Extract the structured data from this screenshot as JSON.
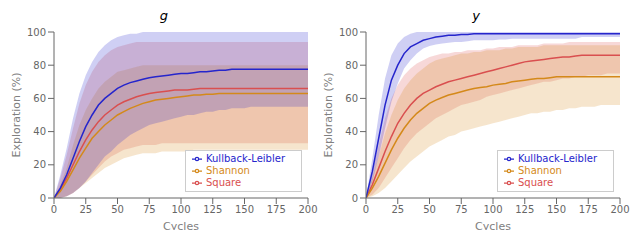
{
  "chart_data": [
    {
      "type": "line",
      "title": "g",
      "xlabel": "Cycles",
      "ylabel": "Exploration (%)",
      "x": [
        0,
        5,
        10,
        15,
        20,
        25,
        30,
        35,
        40,
        45,
        50,
        55,
        60,
        65,
        70,
        75,
        80,
        85,
        90,
        95,
        100,
        105,
        110,
        115,
        120,
        125,
        130,
        135,
        140,
        145,
        150,
        155,
        160,
        165,
        170,
        175,
        180,
        185,
        190,
        195,
        200
      ],
      "xlim": [
        0,
        200
      ],
      "xticks": [
        0,
        25,
        50,
        75,
        100,
        125,
        150,
        175,
        200
      ],
      "ylim": [
        0,
        100
      ],
      "yticks": [
        0,
        20,
        40,
        60,
        80,
        100
      ],
      "grid": false,
      "legend": "lower right",
      "series": [
        {
          "name": "Square",
          "color": "#d94f4f",
          "values": [
            0,
            5,
            12,
            20,
            28,
            35,
            41,
            46,
            50,
            53,
            56,
            58,
            59.5,
            61,
            62,
            63,
            63.5,
            64,
            64.5,
            65,
            65,
            65,
            65.5,
            66,
            66,
            66,
            66,
            66,
            66,
            66,
            66,
            66,
            66,
            66,
            66,
            66,
            66,
            66,
            66,
            66,
            66
          ],
          "low": [
            0,
            0,
            1,
            3,
            6,
            10,
            14,
            18,
            22,
            25,
            27,
            29,
            30,
            31,
            32,
            32,
            32,
            33,
            33,
            33,
            33,
            33,
            33,
            33,
            33,
            33,
            33,
            33,
            33,
            33,
            33,
            33,
            33,
            33,
            33,
            33,
            33,
            33,
            33,
            33,
            33
          ],
          "high": [
            0,
            12,
            26,
            42,
            57,
            68,
            76,
            82,
            86,
            89,
            91,
            92,
            93,
            94,
            94,
            94,
            94,
            94,
            94,
            94,
            94,
            94,
            94,
            94,
            94,
            94,
            94,
            94,
            94,
            94,
            94,
            94,
            94,
            94,
            94,
            94,
            94,
            94,
            94,
            94,
            94
          ]
        },
        {
          "name": "Shannon",
          "color": "#d4891a",
          "values": [
            0,
            4,
            10,
            17,
            24,
            30,
            36,
            40,
            44,
            47,
            50,
            52,
            54,
            55.5,
            57,
            58,
            59,
            59.5,
            60,
            60.5,
            61,
            61.5,
            62,
            62,
            62.5,
            62.5,
            63,
            63,
            63,
            63,
            63,
            63,
            63,
            63,
            63,
            63,
            63,
            63,
            63,
            63,
            63
          ],
          "low": [
            0,
            0,
            1,
            3,
            6,
            9,
            12,
            15,
            18,
            20,
            22,
            24,
            25,
            26,
            27,
            27,
            27,
            28,
            28,
            28,
            28,
            28,
            29,
            29,
            29,
            29,
            29,
            29,
            29,
            29,
            29,
            29,
            29,
            29,
            29,
            29,
            29,
            29,
            29,
            29,
            29
          ],
          "high": [
            0,
            8,
            18,
            32,
            44,
            53,
            60,
            66,
            70,
            73,
            76,
            77,
            78,
            79,
            80,
            80,
            80,
            80,
            80,
            80,
            80,
            80,
            80,
            80,
            80,
            80,
            80,
            80,
            80,
            80,
            80,
            80,
            80,
            80,
            80,
            80,
            80,
            80,
            80,
            80,
            80
          ]
        },
        {
          "name": "Kullback-Leibler",
          "color": "#2525cc",
          "values": [
            0,
            6,
            14,
            24,
            34,
            43,
            50,
            56,
            60,
            63,
            66,
            68,
            69.5,
            70.5,
            71.5,
            72.5,
            73,
            73.5,
            74,
            74.5,
            75,
            75,
            75.5,
            76,
            76,
            76.5,
            77,
            77,
            77.5,
            77.5,
            77.5,
            77.5,
            77.5,
            77.5,
            77.5,
            77.5,
            77.5,
            77.5,
            77.5,
            77.5,
            77.5
          ],
          "low": [
            0,
            0,
            1,
            3,
            6,
            10,
            15,
            20,
            25,
            28,
            32,
            35,
            38,
            40,
            42,
            44,
            45,
            46,
            47,
            48,
            49,
            50,
            50,
            51,
            52,
            52,
            53,
            53,
            54,
            54,
            54,
            55,
            55,
            55,
            55,
            55,
            55,
            55,
            55,
            55,
            55
          ],
          "high": [
            0,
            14,
            30,
            48,
            63,
            74,
            82,
            88,
            92,
            95,
            97,
            98,
            99,
            99,
            100,
            100,
            100,
            100,
            100,
            100,
            100,
            100,
            100,
            100,
            100,
            100,
            100,
            100,
            100,
            100,
            100,
            100,
            100,
            100,
            100,
            100,
            100,
            100,
            100,
            100,
            100
          ]
        }
      ]
    },
    {
      "type": "line",
      "title": "y",
      "xlabel": "Cycles",
      "ylabel": "Exploration (%)",
      "x": [
        0,
        5,
        10,
        15,
        20,
        25,
        30,
        35,
        40,
        45,
        50,
        55,
        60,
        65,
        70,
        75,
        80,
        85,
        90,
        95,
        100,
        105,
        110,
        115,
        120,
        125,
        130,
        135,
        140,
        145,
        150,
        155,
        160,
        165,
        170,
        175,
        180,
        185,
        190,
        195,
        200
      ],
      "xlim": [
        0,
        200
      ],
      "xticks": [
        0,
        25,
        50,
        75,
        100,
        125,
        150,
        175,
        200
      ],
      "ylim": [
        0,
        100
      ],
      "yticks": [
        0,
        20,
        40,
        60,
        80,
        100
      ],
      "grid": false,
      "legend": "lower right",
      "series": [
        {
          "name": "Square",
          "color": "#d94f4f",
          "values": [
            0,
            8,
            18,
            28,
            37,
            45,
            51,
            56,
            60,
            63,
            65,
            67,
            68.5,
            70,
            71,
            72,
            73,
            74,
            75,
            76,
            77,
            78,
            79,
            80,
            81,
            82,
            82.5,
            83,
            83.5,
            84,
            84.5,
            85,
            85,
            85.5,
            86,
            86,
            86,
            86,
            86,
            86,
            86
          ],
          "low": [
            0,
            2,
            6,
            12,
            18,
            24,
            30,
            35,
            39,
            42,
            45,
            48,
            50,
            52,
            54,
            56,
            57,
            58,
            59,
            61,
            62,
            63,
            64,
            65,
            66,
            67,
            68,
            69,
            70,
            70,
            71,
            72,
            72,
            73,
            73,
            74,
            74,
            74,
            75,
            75,
            75
          ],
          "high": [
            0,
            16,
            32,
            48,
            60,
            68,
            74,
            78,
            81,
            83,
            85,
            86,
            87,
            87,
            88,
            88,
            89,
            89,
            89,
            90,
            90,
            91,
            91,
            91,
            92,
            92,
            92,
            92,
            93,
            93,
            93,
            93,
            94,
            94,
            94,
            94,
            94,
            94,
            94,
            94,
            94
          ]
        },
        {
          "name": "Shannon",
          "color": "#d4891a",
          "values": [
            0,
            6,
            13,
            21,
            29,
            36,
            42,
            47,
            51,
            54,
            57,
            59,
            60.5,
            62,
            63,
            64,
            65,
            66,
            66.5,
            67,
            68,
            68.5,
            69,
            70,
            70.5,
            71,
            71.5,
            72,
            72,
            72.5,
            73,
            73,
            73,
            73,
            73,
            73,
            73,
            73,
            73,
            73,
            73
          ],
          "low": [
            0,
            1,
            3,
            6,
            10,
            14,
            18,
            22,
            25,
            28,
            31,
            33,
            35,
            37,
            38,
            40,
            41,
            42,
            43,
            44,
            45,
            46,
            47,
            48,
            49,
            50,
            51,
            51,
            52,
            52,
            53,
            53,
            54,
            54,
            55,
            55,
            55,
            56,
            56,
            56,
            56
          ],
          "high": [
            0,
            12,
            25,
            39,
            50,
            59,
            66,
            71,
            75,
            78,
            81,
            83,
            84,
            85,
            86,
            87,
            87,
            88,
            88,
            89,
            89,
            89,
            90,
            90,
            91,
            91,
            91,
            91,
            92,
            92,
            92,
            92,
            92,
            92,
            92,
            92,
            92,
            92,
            92,
            92,
            92
          ]
        },
        {
          "name": "Kullback-Leibler",
          "color": "#2525cc",
          "values": [
            0,
            16,
            36,
            56,
            71,
            80,
            87,
            91,
            93,
            95,
            96,
            97,
            97.5,
            98,
            98,
            98.5,
            98.5,
            99,
            99,
            99,
            99,
            99,
            99,
            99,
            99,
            99,
            99,
            99,
            99,
            99,
            99,
            99,
            99,
            99,
            99,
            99,
            99,
            99,
            99,
            99,
            99
          ],
          "low": [
            0,
            10,
            25,
            42,
            58,
            69,
            78,
            83,
            87,
            90,
            91.5,
            92.5,
            93,
            93.5,
            94,
            94,
            94.5,
            95,
            95,
            95,
            95,
            95.5,
            95.5,
            96,
            96,
            96,
            96,
            96,
            96,
            96,
            96,
            96,
            96,
            96,
            97,
            97,
            97,
            97,
            97,
            97,
            97
          ],
          "high": [
            0,
            24,
            50,
            72,
            86,
            93,
            97,
            99,
            100,
            100,
            100,
            100,
            100,
            100,
            100,
            100,
            100,
            100,
            100,
            100,
            100,
            100,
            100,
            100,
            100,
            100,
            100,
            100,
            100,
            100,
            100,
            100,
            100,
            100,
            100,
            100,
            100,
            100,
            100,
            100,
            100
          ]
        }
      ]
    }
  ]
}
